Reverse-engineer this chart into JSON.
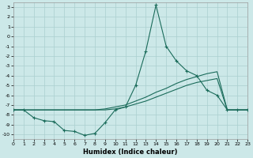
{
  "xlabel": "Humidex (Indice chaleur)",
  "background_color": "#cce8e8",
  "grid_color": "#aacfcf",
  "line_color": "#1a6b5a",
  "xlim": [
    0,
    23
  ],
  "ylim": [
    -10.5,
    3.5
  ],
  "xticks": [
    0,
    1,
    2,
    3,
    4,
    5,
    6,
    7,
    8,
    9,
    10,
    11,
    12,
    13,
    14,
    15,
    16,
    17,
    18,
    19,
    20,
    21,
    22,
    23
  ],
  "yticks": [
    3,
    2,
    1,
    0,
    -1,
    -2,
    -3,
    -4,
    -5,
    -6,
    -7,
    -8,
    -9,
    -10
  ],
  "line1_x": [
    0,
    1,
    2,
    3,
    4,
    5,
    6,
    7,
    8,
    9,
    10,
    11,
    12,
    13,
    14,
    15,
    16,
    17,
    18,
    19,
    20,
    21,
    22,
    23
  ],
  "line1_y": [
    -7.5,
    -7.5,
    -8.3,
    -8.6,
    -8.7,
    -9.6,
    -9.7,
    -10.1,
    -9.9,
    -8.8,
    -7.5,
    -7.2,
    -5.0,
    -1.5,
    3.2,
    -1.0,
    -2.5,
    -3.5,
    -4.0,
    -5.5,
    -6.0,
    -7.5,
    -7.5,
    -7.5
  ],
  "line2_x": [
    0,
    1,
    2,
    3,
    4,
    5,
    6,
    7,
    8,
    9,
    10,
    11,
    12,
    13,
    14,
    15,
    16,
    17,
    18,
    19,
    20,
    21,
    22,
    23
  ],
  "line2_y": [
    -7.5,
    -7.5,
    -7.5,
    -7.5,
    -7.5,
    -7.5,
    -7.5,
    -7.5,
    -7.5,
    -7.4,
    -7.2,
    -7.0,
    -6.6,
    -6.2,
    -5.7,
    -5.3,
    -4.8,
    -4.4,
    -4.1,
    -3.8,
    -3.6,
    -7.5,
    -7.5,
    -7.5
  ],
  "line3_x": [
    0,
    1,
    2,
    3,
    4,
    5,
    6,
    7,
    8,
    9,
    10,
    11,
    12,
    13,
    14,
    15,
    16,
    17,
    18,
    19,
    20,
    21,
    22,
    23
  ],
  "line3_y": [
    -7.5,
    -7.5,
    -7.5,
    -7.5,
    -7.5,
    -7.5,
    -7.5,
    -7.5,
    -7.5,
    -7.5,
    -7.4,
    -7.2,
    -6.9,
    -6.6,
    -6.2,
    -5.8,
    -5.4,
    -5.0,
    -4.7,
    -4.5,
    -4.3,
    -7.5,
    -7.5,
    -7.5
  ]
}
